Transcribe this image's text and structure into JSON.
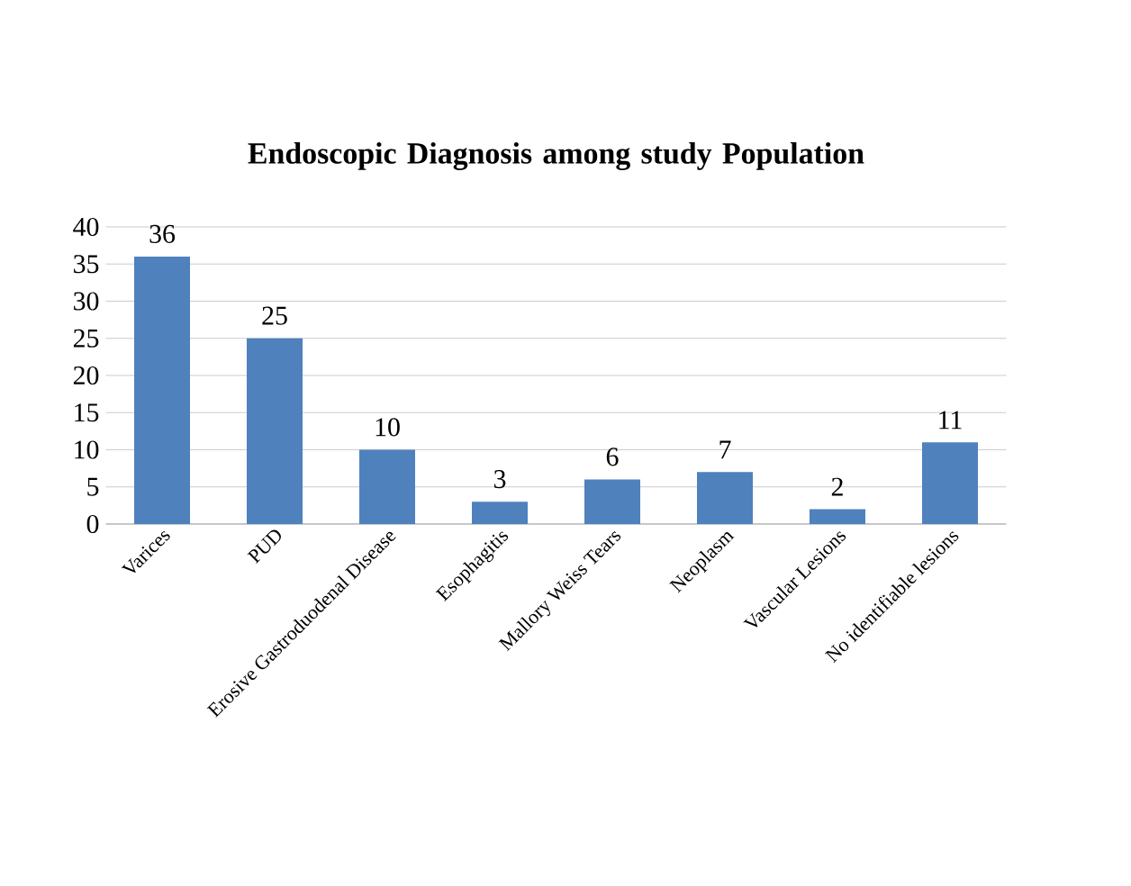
{
  "chart_data": {
    "type": "bar",
    "title": "Endoscopic Diagnosis among study Population",
    "categories": [
      "Varices",
      "PUD",
      "Erosive Gastroduodenal Disease",
      "Esophagitis",
      "Mallory Weiss Tears",
      "Neoplasm",
      "Vascular Lesions",
      "No identifiable lesions"
    ],
    "values": [
      36,
      25,
      10,
      3,
      6,
      7,
      2,
      11
    ],
    "color": "#4f81bd",
    "ylim": [
      0,
      40
    ],
    "yticks": [
      0,
      5,
      10,
      15,
      20,
      25,
      30,
      35,
      40
    ],
    "grid": "y",
    "data_labels": true
  }
}
